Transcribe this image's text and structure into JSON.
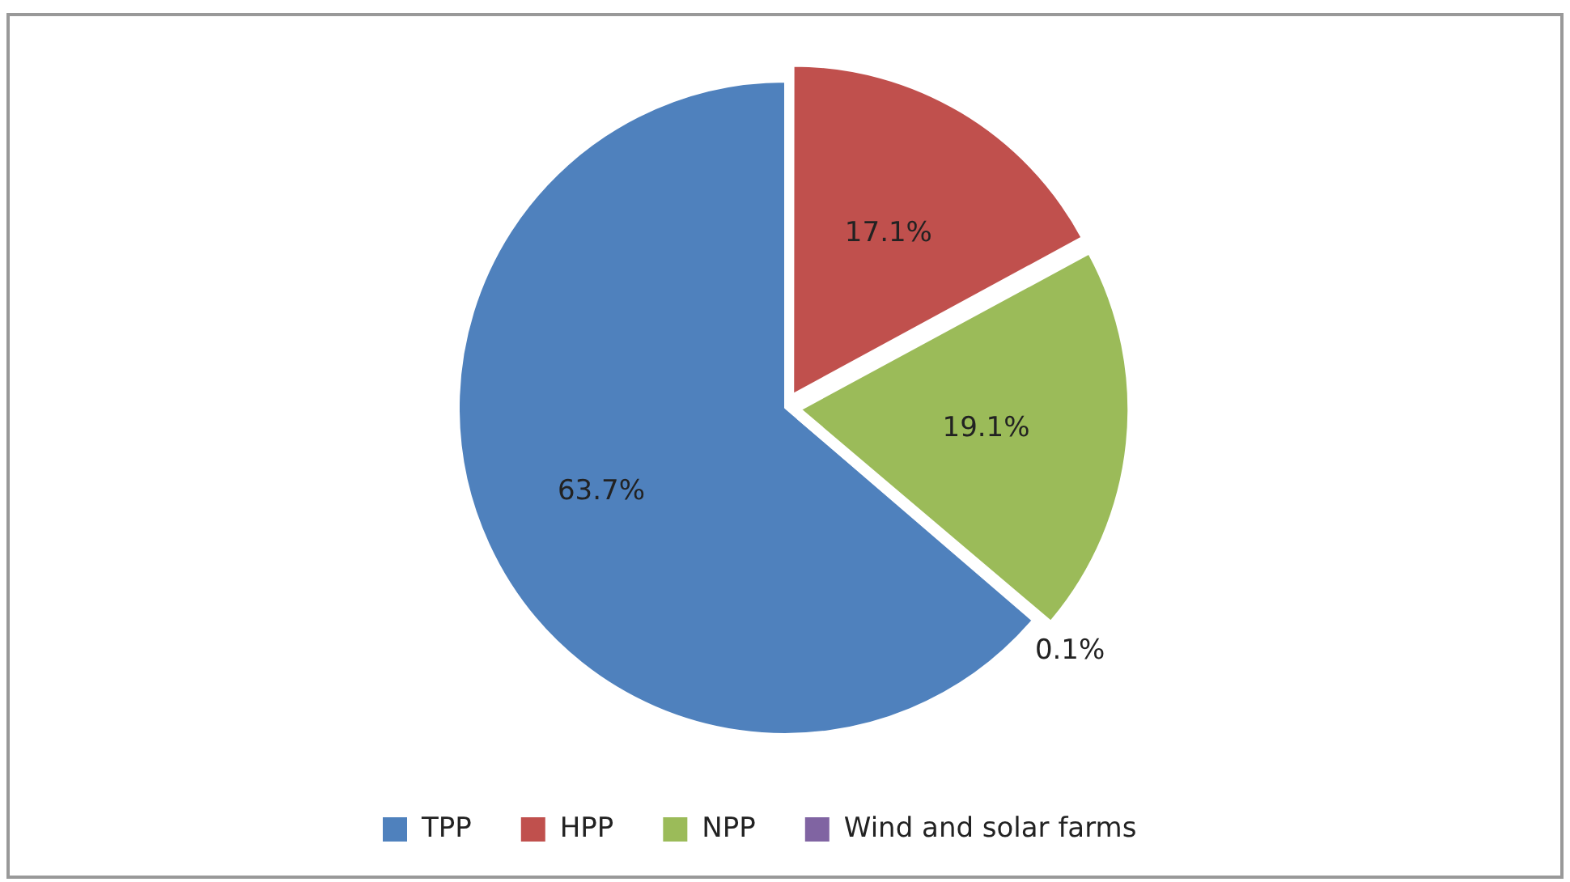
{
  "chart_data": {
    "type": "pie",
    "categories": [
      "TPP",
      "HPP",
      "NPP",
      "Wind and solar farms"
    ],
    "values": [
      63.7,
      17.1,
      19.1,
      0.1
    ],
    "colors": [
      "#4f81bd",
      "#c0504d",
      "#9bbb59",
      "#8064a2"
    ],
    "value_labels": [
      "63.7%",
      "17.1%",
      "19.1%",
      "0.1%"
    ],
    "legend": "bottom left"
  }
}
